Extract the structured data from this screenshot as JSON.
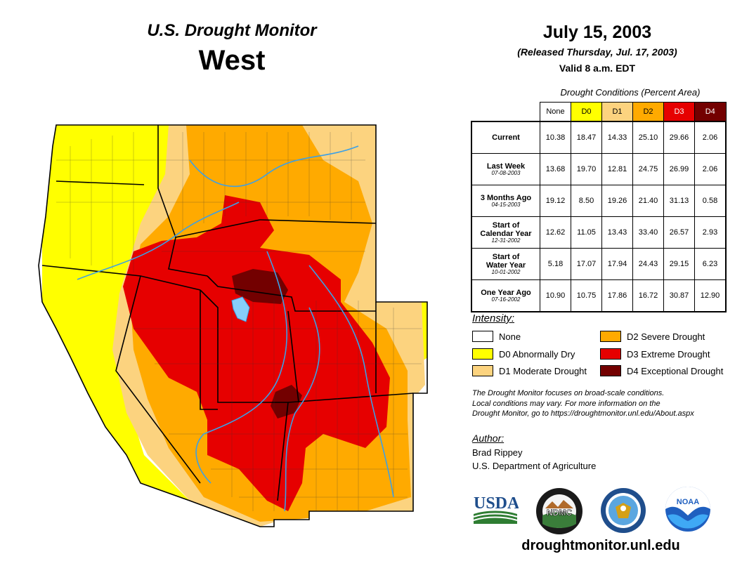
{
  "header": {
    "monitor_title": "U.S. Drought Monitor",
    "region": "West",
    "date": "July 15, 2003",
    "released": "(Released Thursday, Jul. 17, 2003)",
    "valid": "Valid 8 a.m. EDT"
  },
  "table": {
    "caption": "Drought Conditions (Percent Area)",
    "columns": [
      {
        "label": "None",
        "color": "#ffffff"
      },
      {
        "label": "D0",
        "color": "#ffff00"
      },
      {
        "label": "D1",
        "color": "#fcd37f"
      },
      {
        "label": "D2",
        "color": "#ffaa00"
      },
      {
        "label": "D3",
        "color": "#e60000"
      },
      {
        "label": "D4",
        "color": "#730000"
      }
    ],
    "rows": [
      {
        "label": "Current",
        "label2": "",
        "date": "",
        "values": [
          "10.38",
          "18.47",
          "14.33",
          "25.10",
          "29.66",
          "2.06"
        ]
      },
      {
        "label": "Last Week",
        "label2": "",
        "date": "07-08-2003",
        "values": [
          "13.68",
          "19.70",
          "12.81",
          "24.75",
          "26.99",
          "2.06"
        ]
      },
      {
        "label": "3 Months Ago",
        "label2": "",
        "date": "04-15-2003",
        "values": [
          "19.12",
          "8.50",
          "19.26",
          "21.40",
          "31.13",
          "0.58"
        ]
      },
      {
        "label": "Start of",
        "label2": "Calendar Year",
        "date": "12-31-2002",
        "values": [
          "12.62",
          "11.05",
          "13.43",
          "33.40",
          "26.57",
          "2.93"
        ]
      },
      {
        "label": "Start of",
        "label2": "Water Year",
        "date": "10-01-2002",
        "values": [
          "5.18",
          "17.07",
          "17.94",
          "24.43",
          "29.15",
          "6.23"
        ]
      },
      {
        "label": "One Year Ago",
        "label2": "",
        "date": "07-16-2002",
        "values": [
          "10.90",
          "10.75",
          "17.86",
          "16.72",
          "30.87",
          "12.90"
        ]
      }
    ]
  },
  "legend": {
    "title": "Intensity:",
    "items": [
      {
        "label": "None",
        "color": "#ffffff"
      },
      {
        "label": "D0 Abnormally Dry",
        "color": "#ffff00"
      },
      {
        "label": "D1 Moderate Drought",
        "color": "#fcd37f"
      },
      {
        "label": "D2 Severe Drought",
        "color": "#ffaa00"
      },
      {
        "label": "D3 Extreme Drought",
        "color": "#e60000"
      },
      {
        "label": "D4 Exceptional Drought",
        "color": "#730000"
      }
    ]
  },
  "note": {
    "line1": "The Drought Monitor focuses on broad-scale conditions.",
    "line2": "Local conditions may vary. For more information on the",
    "line3": "Drought Monitor, go to https://droughtmonitor.unl.edu/About.aspx"
  },
  "author": {
    "title": "Author:",
    "name": "Brad Rippey",
    "org": "U.S. Department of Agriculture"
  },
  "logos": {
    "usda": "USDA",
    "ndmc": "NDMC",
    "noaa": "NOAA"
  },
  "url": "droughtmonitor.unl.edu"
}
